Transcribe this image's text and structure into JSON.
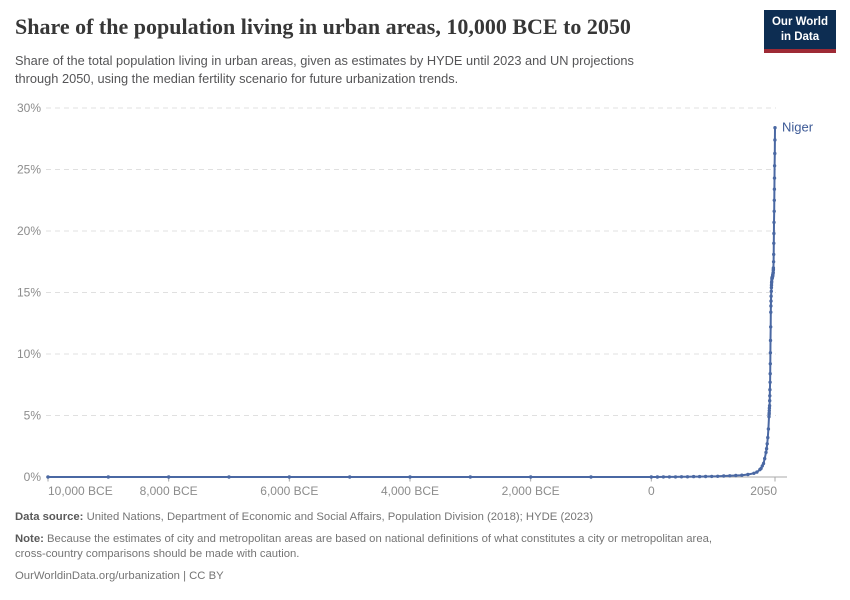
{
  "header": {
    "title": "Share of the population living in urban areas, 10,000 BCE to 2050",
    "subtitle_line1": "Share of the total population living in urban areas, given as estimates by HYDE until 2023 and UN projections",
    "subtitle_line2": "through 2050, using the median fertility scenario for future urbanization trends.",
    "logo": {
      "line1": "Our World",
      "line2": "in Data",
      "bg_color": "#0d2d52",
      "accent_color": "#9e2a35"
    }
  },
  "chart_data": {
    "type": "line",
    "title": "Share of the population living in urban areas, 10,000 BCE to 2050",
    "xlabel": "",
    "ylabel": "",
    "x_range": [
      -10000,
      2050
    ],
    "y_range": [
      0,
      30
    ],
    "grid": "horizontal-dashed",
    "grid_color": "#e0e0e0",
    "axis_color": "#a8a8a8",
    "tick_label_color": "#8c8c8c",
    "y_ticks": [
      {
        "value": 0,
        "label": "0%"
      },
      {
        "value": 5,
        "label": "5%"
      },
      {
        "value": 10,
        "label": "10%"
      },
      {
        "value": 15,
        "label": "15%"
      },
      {
        "value": 20,
        "label": "20%"
      },
      {
        "value": 25,
        "label": "25%"
      },
      {
        "value": 30,
        "label": "30%"
      }
    ],
    "x_ticks": [
      {
        "year": -10000,
        "label": "10,000 BCE"
      },
      {
        "year": -8000,
        "label": "8,000 BCE"
      },
      {
        "year": -6000,
        "label": "6,000 BCE"
      },
      {
        "year": -4000,
        "label": "4,000 BCE"
      },
      {
        "year": -2000,
        "label": "2,000 BCE"
      },
      {
        "year": 0,
        "label": "0"
      },
      {
        "year": 2050,
        "label": "2050"
      }
    ],
    "series": [
      {
        "name": "Niger",
        "color": "#4a68a3",
        "label_color": "#3d5a96",
        "points": [
          [
            -10000,
            0
          ],
          [
            -9000,
            0
          ],
          [
            -8000,
            0
          ],
          [
            -7000,
            0
          ],
          [
            -6000,
            0
          ],
          [
            -5000,
            0
          ],
          [
            -4000,
            0
          ],
          [
            -3000,
            0
          ],
          [
            -2000,
            0
          ],
          [
            -1000,
            0
          ],
          [
            0,
            0
          ],
          [
            100,
            0
          ],
          [
            200,
            0.01
          ],
          [
            300,
            0.01
          ],
          [
            400,
            0.01
          ],
          [
            500,
            0.02
          ],
          [
            600,
            0.02
          ],
          [
            700,
            0.03
          ],
          [
            800,
            0.03
          ],
          [
            900,
            0.04
          ],
          [
            1000,
            0.05
          ],
          [
            1100,
            0.06
          ],
          [
            1200,
            0.08
          ],
          [
            1300,
            0.1
          ],
          [
            1400,
            0.12
          ],
          [
            1500,
            0.15
          ],
          [
            1600,
            0.2
          ],
          [
            1700,
            0.3
          ],
          [
            1750,
            0.4
          ],
          [
            1800,
            0.6
          ],
          [
            1820,
            0.7
          ],
          [
            1840,
            0.9
          ],
          [
            1860,
            1.1
          ],
          [
            1880,
            1.5
          ],
          [
            1900,
            2.0
          ],
          [
            1910,
            2.3
          ],
          [
            1920,
            2.7
          ],
          [
            1930,
            3.2
          ],
          [
            1940,
            3.9
          ],
          [
            1950,
            4.9
          ],
          [
            1952,
            5.1
          ],
          [
            1954,
            5.2
          ],
          [
            1956,
            5.4
          ],
          [
            1958,
            5.6
          ],
          [
            1960,
            5.8
          ],
          [
            1962,
            6.2
          ],
          [
            1964,
            6.6
          ],
          [
            1966,
            7.1
          ],
          [
            1968,
            7.7
          ],
          [
            1970,
            8.4
          ],
          [
            1972,
            9.2
          ],
          [
            1974,
            10.1
          ],
          [
            1976,
            11.1
          ],
          [
            1978,
            12.2
          ],
          [
            1980,
            13.4
          ],
          [
            1982,
            13.9
          ],
          [
            1984,
            14.3
          ],
          [
            1986,
            14.7
          ],
          [
            1988,
            15.1
          ],
          [
            1990,
            15.4
          ],
          [
            1992,
            15.6
          ],
          [
            1994,
            15.8
          ],
          [
            1996,
            15.9
          ],
          [
            1998,
            16.1
          ],
          [
            2000,
            16.2
          ],
          [
            2002,
            16.2
          ],
          [
            2004,
            16.2
          ],
          [
            2006,
            16.2
          ],
          [
            2008,
            16.3
          ],
          [
            2010,
            16.3
          ],
          [
            2012,
            16.4
          ],
          [
            2014,
            16.4
          ],
          [
            2016,
            16.5
          ],
          [
            2018,
            16.6
          ],
          [
            2020,
            16.6
          ],
          [
            2022,
            16.8
          ],
          [
            2023,
            16.9
          ],
          [
            2024,
            17.0
          ],
          [
            2026,
            17.5
          ],
          [
            2028,
            18.1
          ],
          [
            2030,
            19.0
          ],
          [
            2032,
            19.8
          ],
          [
            2034,
            20.7
          ],
          [
            2036,
            21.6
          ],
          [
            2038,
            22.5
          ],
          [
            2040,
            23.4
          ],
          [
            2042,
            24.3
          ],
          [
            2044,
            25.3
          ],
          [
            2046,
            26.3
          ],
          [
            2048,
            27.4
          ],
          [
            2050,
            28.4
          ]
        ]
      }
    ]
  },
  "footer": {
    "source_label": "Data source:",
    "source_text": "United Nations, Department of Economic and Social Affairs, Population Division (2018); HYDE (2023)",
    "note_label": "Note:",
    "note_line1": "Because the estimates of city and metropolitan areas are based on national definitions of what constitutes a city or metropolitan area,",
    "note_line2": "cross-country comparisons should be made with caution.",
    "link_text": "OurWorldinData.org/urbanization | CC BY"
  }
}
